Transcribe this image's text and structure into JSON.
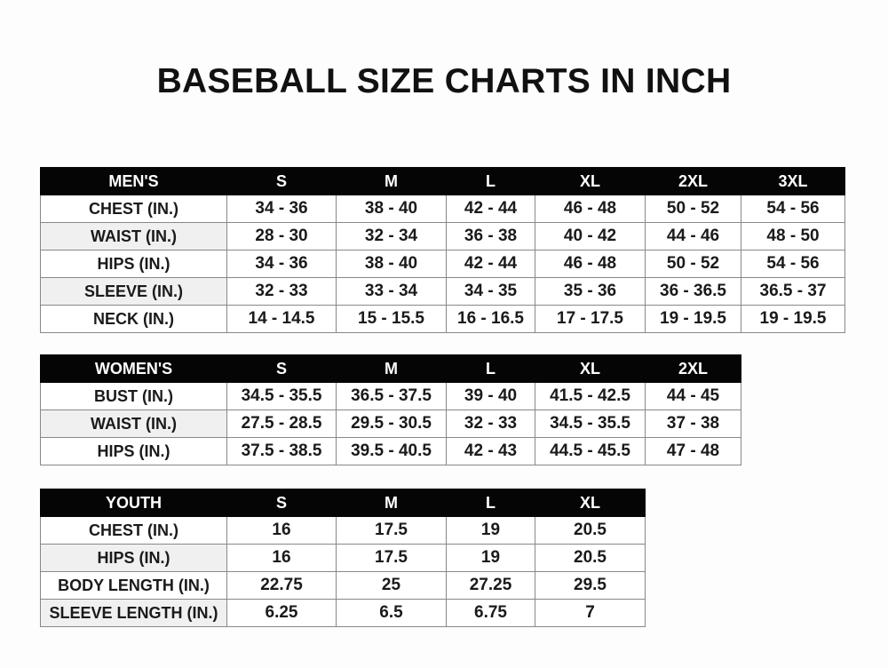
{
  "title": "BASEBALL SIZE CHARTS IN INCH",
  "tables": {
    "men": {
      "header": [
        "MEN'S",
        "S",
        "M",
        "L",
        "XL",
        "2XL",
        "3XL"
      ],
      "rows": [
        [
          "CHEST (IN.)",
          "34 - 36",
          "38 - 40",
          "42 - 44",
          "46 - 48",
          "50 - 52",
          "54 - 56"
        ],
        [
          "WAIST (IN.)",
          "28 - 30",
          "32 - 34",
          "36 - 38",
          "40 - 42",
          "44 - 46",
          "48 - 50"
        ],
        [
          "HIPS (IN.)",
          "34 - 36",
          "38 - 40",
          "42 - 44",
          "46 - 48",
          "50 - 52",
          "54 - 56"
        ],
        [
          "SLEEVE (IN.)",
          "32 - 33",
          "33 - 34",
          "34 - 35",
          "35 - 36",
          "36 - 36.5",
          "36.5 - 37"
        ],
        [
          "NECK (IN.)",
          "14 - 14.5",
          "15 - 15.5",
          "16 - 16.5",
          "17 - 17.5",
          "19 - 19.5",
          "19 - 19.5"
        ]
      ]
    },
    "women": {
      "header": [
        "WOMEN'S",
        "S",
        "M",
        "L",
        "XL",
        "2XL"
      ],
      "rows": [
        [
          "BUST (IN.)",
          "34.5 - 35.5",
          "36.5 - 37.5",
          "39 - 40",
          "41.5 - 42.5",
          "44 - 45"
        ],
        [
          "WAIST (IN.)",
          "27.5 - 28.5",
          "29.5 - 30.5",
          "32 - 33",
          "34.5 - 35.5",
          "37 - 38"
        ],
        [
          "HIPS (IN.)",
          "37.5 - 38.5",
          "39.5 - 40.5",
          "42 - 43",
          "44.5 - 45.5",
          "47 - 48"
        ]
      ]
    },
    "youth": {
      "header": [
        "YOUTH",
        "S",
        "M",
        "L",
        "XL"
      ],
      "rows": [
        [
          "CHEST (IN.)",
          "16",
          "17.5",
          "19",
          "20.5"
        ],
        [
          "HIPS (IN.)",
          "16",
          "17.5",
          "19",
          "20.5"
        ],
        [
          "BODY LENGTH (IN.)",
          "22.75",
          "25",
          "27.25",
          "29.5"
        ],
        [
          "SLEEVE LENGTH (IN.)",
          "6.25",
          "6.5",
          "6.75",
          "7"
        ]
      ]
    }
  }
}
